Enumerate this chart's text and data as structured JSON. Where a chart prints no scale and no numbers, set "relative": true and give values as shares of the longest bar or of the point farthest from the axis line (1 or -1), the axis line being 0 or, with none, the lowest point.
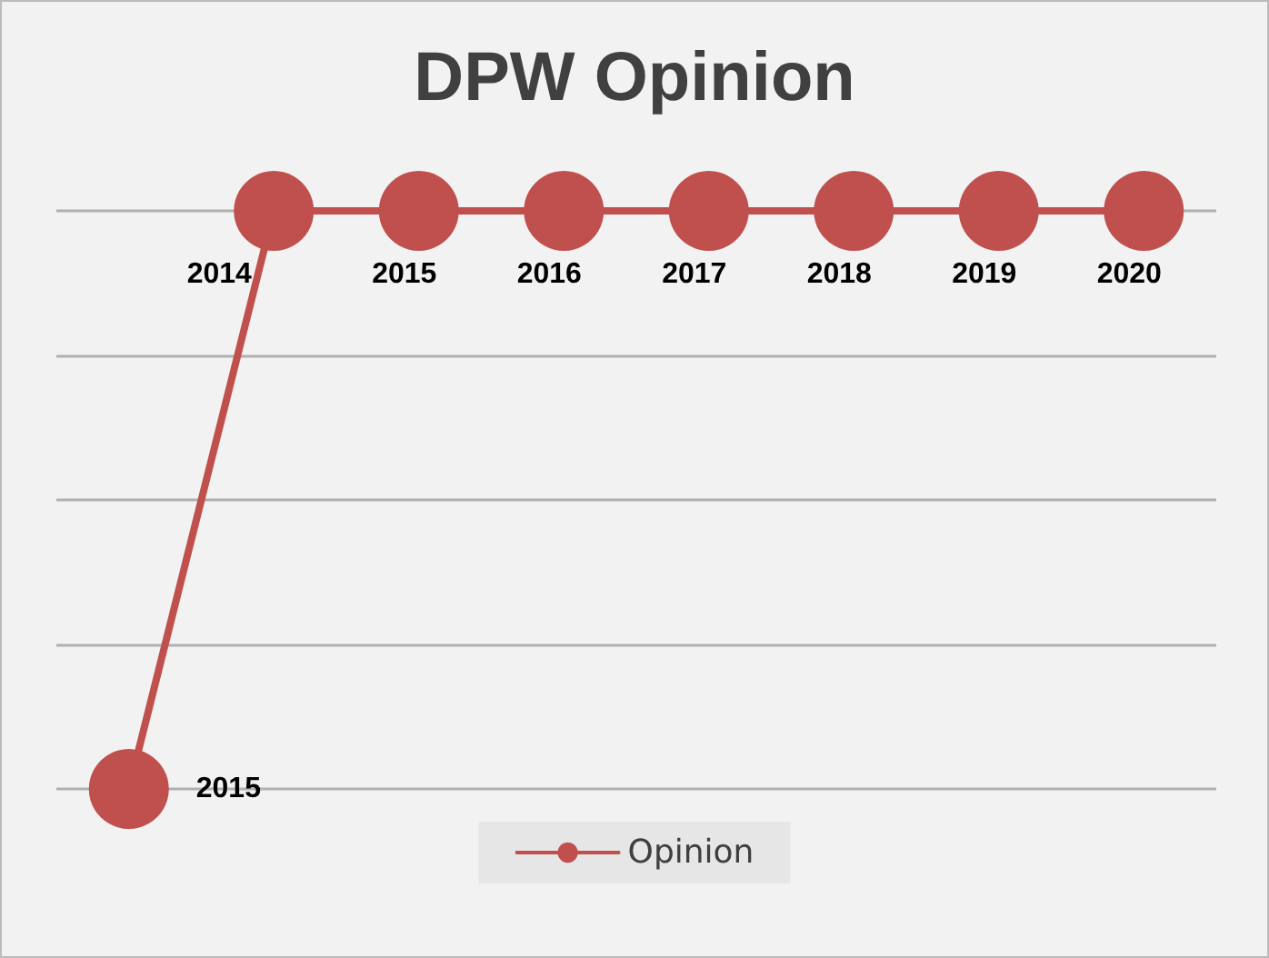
{
  "chart_data": {
    "type": "line",
    "title": "DPW Opinion",
    "relative": true,
    "categories": [
      null,
      null,
      null,
      null,
      null,
      null,
      null,
      null
    ],
    "series": [
      {
        "name": "Opinion",
        "color": "#c0504d",
        "values": [
          0,
          1,
          1,
          1,
          1,
          1,
          1,
          1
        ]
      }
    ],
    "annotations": [
      "2015",
      "2014",
      "2015",
      "2016",
      "2017",
      "2018",
      "2019",
      "2020"
    ],
    "grid": "y",
    "legend": "bottom",
    "marker": "circle",
    "line_style": "solid"
  }
}
